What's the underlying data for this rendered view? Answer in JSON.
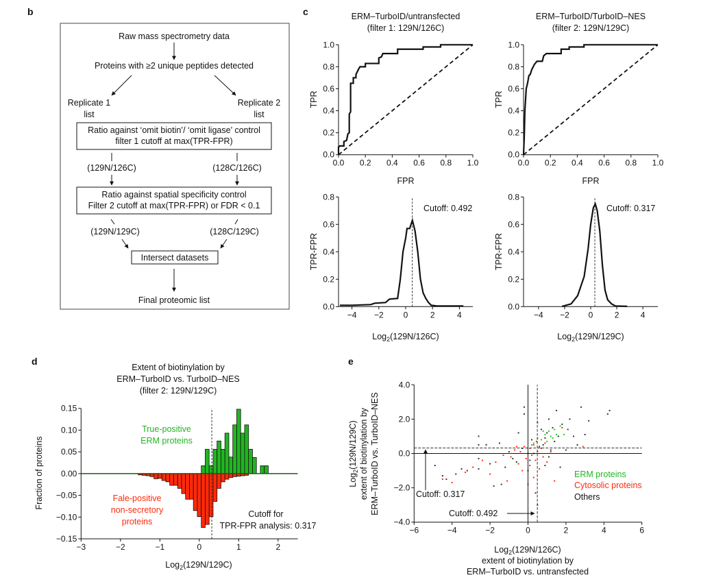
{
  "panel_labels": {
    "b": "b",
    "c": "c",
    "d": "d",
    "e": "e"
  },
  "flowchart": {
    "step1": "Raw mass spectrometry data",
    "step2": "Proteins with ≥2 unique peptides detected",
    "rep1_a": "Replicate 1",
    "rep1_b": "list",
    "rep2_a": "Replicate 2",
    "rep2_b": "list",
    "box1_a": "Ratio against ‘omit biotin’/ ‘omit ligase’ control",
    "box1_b": "filter 1 cutoff at max(TPR-FPR)",
    "ratio1_left": "(129N/126C)",
    "ratio1_right": "(128C/126C)",
    "box2_a": "Ratio against spatial specificity control",
    "box2_b": "Filter 2 cutoff at max(TPR-FPR) or FDR < 0.1",
    "ratio2_left": "(129N/129C)",
    "ratio2_right": "(128C/129C)",
    "box3": "Intersect datasets",
    "final": "Final proteomic list"
  },
  "chart_data": [
    {
      "id": "roc1",
      "type": "line",
      "title": [
        "ERM–TurboID/untransfected",
        "(filter 1: 129N/126C)"
      ],
      "xlabel": "FPR",
      "ylabel": "TPR",
      "xlim": [
        0,
        1
      ],
      "ylim": [
        0,
        1
      ],
      "xticks": [
        "0.0",
        "0.2",
        "0.4",
        "0.6",
        "0.8",
        "1.0"
      ],
      "yticks": [
        "0.0",
        "0.2",
        "0.4",
        "0.6",
        "0.8",
        "1.0"
      ],
      "series": [
        {
          "x": [
            0,
            0,
            0.01,
            0.04,
            0.04,
            0.06,
            0.07,
            0.08,
            0.08,
            0.09,
            0.09,
            0.11,
            0.11,
            0.13,
            0.13,
            0.15,
            0.16,
            0.2,
            0.2,
            0.3,
            0.3,
            0.32,
            0.33,
            0.44,
            0.44,
            0.63,
            0.63,
            0.76,
            0.76,
            1
          ],
          "y": [
            0,
            0.07,
            0.08,
            0.08,
            0.12,
            0.13,
            0.19,
            0.2,
            0.37,
            0.39,
            0.65,
            0.65,
            0.7,
            0.7,
            0.73,
            0.78,
            0.8,
            0.8,
            0.83,
            0.83,
            0.88,
            0.89,
            0.92,
            0.92,
            0.96,
            0.96,
            0.98,
            0.98,
            1,
            1
          ]
        }
      ],
      "reference_line": "diagonal-dashed"
    },
    {
      "id": "roc2",
      "type": "line",
      "title": [
        "ERM–TurboID/TurboID–NES",
        "(filter 2: 129N/129C)"
      ],
      "xlabel": "FPR",
      "ylabel": "TPR",
      "xlim": [
        0,
        1
      ],
      "ylim": [
        0,
        1
      ],
      "xticks": [
        "0.0",
        "0.2",
        "0.4",
        "0.6",
        "0.8",
        "1.0"
      ],
      "yticks": [
        "0.0",
        "0.2",
        "0.4",
        "0.6",
        "0.8",
        "1.0"
      ],
      "series": [
        {
          "x": [
            0,
            0.005,
            0.01,
            0.02,
            0.03,
            0.04,
            0.05,
            0.06,
            0.08,
            0.1,
            0.14,
            0.15,
            0.17,
            0.28,
            0.28,
            0.34,
            0.34,
            0.45,
            0.45,
            1
          ],
          "y": [
            0,
            0.15,
            0.4,
            0.6,
            0.65,
            0.72,
            0.73,
            0.77,
            0.82,
            0.85,
            0.85,
            0.9,
            0.92,
            0.92,
            0.96,
            0.96,
            0.98,
            0.98,
            1,
            1
          ]
        }
      ],
      "reference_line": "diagonal-dashed"
    },
    {
      "id": "tprfpr1",
      "type": "line",
      "xlabel": [
        "Log",
        "2",
        "(129N/126C)"
      ],
      "ylabel": "TPR-FPR",
      "xlim": [
        -5,
        5
      ],
      "ylim": [
        0,
        0.8
      ],
      "xticks": [
        -4,
        -2,
        0,
        2,
        4
      ],
      "yticks": [
        "0.0",
        "0.2",
        "0.4",
        "0.6",
        "0.8"
      ],
      "cutoff": 0.492,
      "cutoff_label": "Cutoff: 0.492",
      "series": [
        {
          "x": [
            -4.9,
            -4,
            -2.6,
            -2.3,
            -1.5,
            -1.2,
            -0.6,
            -0.4,
            -0.2,
            0,
            0.1,
            0.3,
            0.5,
            0.7,
            0.9,
            1.1,
            1.3,
            1.5,
            1.7,
            1.9,
            2.3,
            4.3
          ],
          "y": [
            0.01,
            0.01,
            0.015,
            0.025,
            0.03,
            0.055,
            0.06,
            0.2,
            0.4,
            0.5,
            0.57,
            0.57,
            0.63,
            0.55,
            0.4,
            0.2,
            0.1,
            0.06,
            0.03,
            0.01,
            0.005,
            0.005
          ]
        }
      ]
    },
    {
      "id": "tprfpr2",
      "type": "line",
      "xlabel": [
        "Log",
        "2",
        "(129N/129C)"
      ],
      "ylabel": "TPR-FPR",
      "xlim": [
        -5.15,
        5.15
      ],
      "ylim": [
        0,
        0.8
      ],
      "xticks": [
        -4,
        -2,
        0,
        2,
        4
      ],
      "yticks": [
        "0.0",
        "0.2",
        "0.4",
        "0.6",
        "0.8"
      ],
      "cutoff": 0.317,
      "cutoff_label": "Cutoff: 0.317",
      "series": [
        {
          "x": [
            -2.2,
            -1.5,
            -1,
            -0.5,
            -0.2,
            0,
            0.2,
            0.35,
            0.5,
            0.7,
            0.9,
            1.1,
            1.3,
            1.6,
            1.9,
            2.8
          ],
          "y": [
            0.002,
            0.02,
            0.08,
            0.22,
            0.42,
            0.6,
            0.72,
            0.75,
            0.7,
            0.55,
            0.3,
            0.12,
            0.05,
            0.02,
            0.005,
            0.002
          ]
        }
      ]
    },
    {
      "id": "hist",
      "type": "bar",
      "title": [
        "Extent of biotinylation by",
        "ERM–TurboID vs. TurboID–NES",
        "(filter 2: 129N/129C)"
      ],
      "xlabel": [
        "Log",
        "2",
        "(129N/129C)"
      ],
      "ylabel": "Fraction of proteins",
      "xlim": [
        -3,
        2.5
      ],
      "ylim": [
        -0.15,
        0.15
      ],
      "bin_width": 0.1,
      "xticks": [
        -3,
        -2,
        -1,
        0,
        1,
        2
      ],
      "yticks": [
        "−0.15",
        "−0.10",
        "−0.05",
        "0.00",
        "0.05",
        "0.10",
        "0.15"
      ],
      "cutoff": 0.317,
      "cutoff_label": [
        "Cutoff for",
        "TPR-FPR analysis: 0.317"
      ],
      "series": [
        {
          "name": "True-positive ERM proteins",
          "label": [
            "True-positive",
            "ERM proteins"
          ],
          "color": "#22b522",
          "bin_start": 0.05,
          "values": [
            0.018,
            0.056,
            0.018,
            0.056,
            0.075,
            0.056,
            0.093,
            0.038,
            0.112,
            0.148,
            0.093,
            0.112,
            0.056,
            0.037,
            0,
            0.018,
            0.018
          ]
        },
        {
          "name": "Fale-positive non-secretory proteins",
          "label": [
            "Fale-positive",
            "non-secretory",
            "proteins"
          ],
          "color": "#ff2a0a",
          "bin_start": -1.55,
          "values": [
            -0.003,
            -0.004,
            -0.005,
            -0.007,
            -0.012,
            -0.011,
            -0.016,
            -0.019,
            -0.027,
            -0.027,
            -0.034,
            -0.046,
            -0.059,
            -0.059,
            -0.085,
            -0.099,
            -0.124,
            -0.117,
            -0.099,
            -0.064,
            -0.034,
            -0.019,
            -0.013,
            -0.009,
            -0.007,
            -0.006,
            -0.005,
            -0.004
          ]
        }
      ]
    },
    {
      "id": "scatter",
      "type": "scatter",
      "xlabel": [
        "Log",
        "2",
        "(129N/126C)",
        "extent of biotinylation by",
        "ERM–TurboID vs. untransfected"
      ],
      "ylabel": [
        "Log",
        "2",
        "(129N/129C)",
        "extent of biotinylation by",
        "ERM–TurboID vs. TurboID–NES"
      ],
      "xlim": [
        -6,
        6
      ],
      "ylim": [
        -4,
        4
      ],
      "xticks": [
        "−6",
        "−4",
        "−2",
        "0",
        "2",
        "4",
        "6"
      ],
      "yticks": [
        "−4.0",
        "−2.0",
        "0.0",
        "2.0",
        "4.0"
      ],
      "cutoff_x": 0.492,
      "cutoff_y": 0.317,
      "cutoff_x_label": "Cutoff: 0.492",
      "cutoff_y_label": "Cutoff: 0.317",
      "series": [
        {
          "name": "Others",
          "color": "#333333",
          "points": [
            [
              -4.9,
              -0.7
            ],
            [
              -4.5,
              -1.3
            ],
            [
              -4.3,
              -1.5
            ],
            [
              -3.8,
              -1.2
            ],
            [
              -3.5,
              -0.9
            ],
            [
              -3.2,
              -1.0
            ],
            [
              -2.6,
              1.0
            ],
            [
              -2.6,
              0.5
            ],
            [
              -2.6,
              -0.3
            ],
            [
              -2.6,
              -0.9
            ],
            [
              -2.2,
              0.5
            ],
            [
              -2.0,
              -0.6
            ],
            [
              -1.8,
              -1.9
            ],
            [
              -1.5,
              0.6
            ],
            [
              -1.4,
              -1.8
            ],
            [
              -1.2,
              -0.8
            ],
            [
              -1.0,
              0.1
            ],
            [
              -0.8,
              -0.3
            ],
            [
              -0.5,
              1.2
            ],
            [
              -0.3,
              0.3
            ],
            [
              -0.2,
              2.7
            ],
            [
              -0.2,
              2.3
            ],
            [
              0,
              -1.0
            ],
            [
              0.2,
              0.8
            ],
            [
              0.4,
              -2.3
            ],
            [
              0.5,
              -3.0
            ],
            [
              0.5,
              1.8
            ],
            [
              0.8,
              0.5
            ],
            [
              0.9,
              -0.7
            ],
            [
              1.0,
              1.2
            ],
            [
              1.1,
              2.0
            ],
            [
              1.2,
              0.2
            ],
            [
              1.3,
              1.5
            ],
            [
              1.5,
              2.5
            ],
            [
              1.6,
              1.0
            ],
            [
              1.7,
              -0.8
            ],
            [
              1.8,
              1.7
            ],
            [
              2.0,
              0.2
            ],
            [
              2.1,
              1.4
            ],
            [
              2.2,
              2.0
            ],
            [
              2.4,
              1.0
            ],
            [
              2.6,
              0.5
            ],
            [
              2.8,
              2.7
            ],
            [
              3.0,
              1.1
            ],
            [
              3.2,
              1.9
            ],
            [
              4.2,
              2.3
            ],
            [
              4.3,
              2.5
            ],
            [
              0.3,
              0.0
            ],
            [
              0.6,
              0.4
            ],
            [
              0.9,
              0.9
            ],
            [
              1.4,
              0.7
            ],
            [
              -0.6,
              -0.5
            ],
            [
              0.1,
              -0.4
            ],
            [
              1.1,
              -0.2
            ],
            [
              0.7,
              1.4
            ]
          ]
        },
        {
          "name": "Cytosolic proteins",
          "color": "#ff2a0a",
          "points": [
            [
              -4.5,
              -1.5
            ],
            [
              -4.0,
              -1.7
            ],
            [
              -3.3,
              -1.1
            ],
            [
              -2.9,
              -0.8
            ],
            [
              -2.4,
              -0.4
            ],
            [
              -2.0,
              -1.2
            ],
            [
              -1.7,
              -0.5
            ],
            [
              -1.3,
              -0.1
            ],
            [
              -1.1,
              -1.6
            ],
            [
              -0.9,
              -0.2
            ],
            [
              -0.7,
              0.2
            ],
            [
              -0.5,
              -0.6
            ],
            [
              -0.4,
              0.1
            ],
            [
              -0.3,
              -1.0
            ],
            [
              -0.2,
              0.4
            ],
            [
              -0.1,
              -0.3
            ],
            [
              0,
              0.0
            ],
            [
              0.1,
              0.3
            ],
            [
              0.1,
              -0.7
            ],
            [
              0.2,
              -0.1
            ],
            [
              0.3,
              0.5
            ],
            [
              0.3,
              -1.4
            ],
            [
              0.4,
              -0.4
            ],
            [
              0.5,
              0.1
            ],
            [
              0.6,
              -0.9
            ],
            [
              0.7,
              0.3
            ],
            [
              0.8,
              -0.2
            ],
            [
              0.9,
              0.6
            ],
            [
              1.0,
              -0.5
            ],
            [
              1.2,
              0.1
            ],
            [
              1.4,
              -1.6
            ],
            [
              1.8,
              1.5
            ],
            [
              2.9,
              0.4
            ],
            [
              -0.6,
              0.4
            ],
            [
              0.0,
              -1.8
            ],
            [
              0.45,
              0.7
            ]
          ]
        },
        {
          "name": "ERM proteins",
          "color": "#22cc22",
          "points": [
            [
              0.3,
              0.6
            ],
            [
              0.5,
              0.9
            ],
            [
              0.7,
              0.8
            ],
            [
              0.9,
              1.1
            ],
            [
              1.1,
              1.3
            ],
            [
              1.2,
              1.0
            ],
            [
              1.4,
              1.4
            ],
            [
              1.5,
              1.1
            ],
            [
              1.7,
              1.6
            ],
            [
              1.9,
              1.1
            ],
            [
              0.8,
              1.3
            ],
            [
              1.0,
              0.7
            ],
            [
              0.2,
              0.5
            ],
            [
              1.3,
              0.9
            ]
          ]
        }
      ],
      "legend": {
        "placement": "right",
        "entries": [
          "ERM proteins",
          "Cytosolic proteins",
          "Others"
        ]
      }
    }
  ]
}
